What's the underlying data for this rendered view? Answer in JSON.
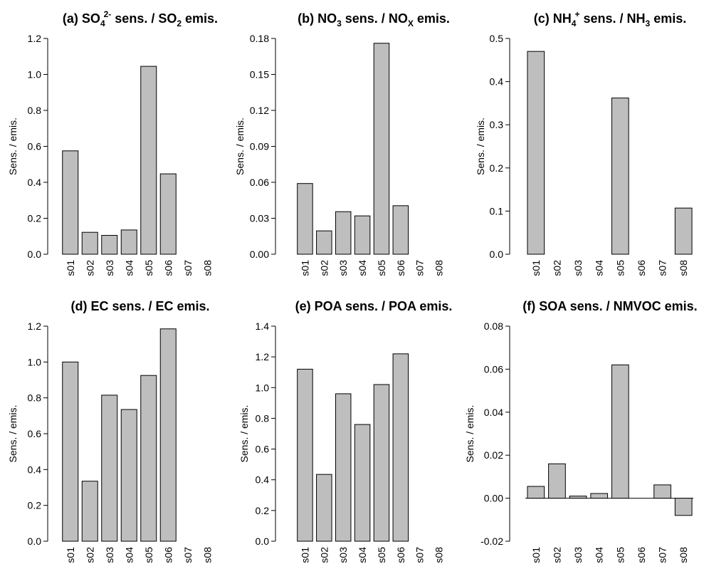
{
  "chart_data": [
    {
      "type": "bar",
      "title": {
        "pre": "(a) SO",
        "sub": "4",
        "sup": "2-",
        "post": " sens. / SO",
        "sub2": "2",
        "end": " emis."
      },
      "ylabel": "Sens. / emis.",
      "categories": [
        "s01",
        "s02",
        "s03",
        "s04",
        "s05",
        "s06",
        "s07",
        "s08"
      ],
      "values": [
        0.575,
        0.122,
        0.105,
        0.135,
        1.045,
        0.447,
        null,
        null
      ],
      "ylim": [
        0,
        1.2
      ],
      "ticks": [
        0.0,
        0.2,
        0.4,
        0.6,
        0.8,
        1.0,
        1.2
      ],
      "tick_labels": [
        "0.0",
        "0.2",
        "0.4",
        "0.6",
        "0.8",
        "1.0",
        "1.2"
      ],
      "bar_color": "#bebebe"
    },
    {
      "type": "bar",
      "title": {
        "pre": "(b) NO",
        "sub": "3",
        "sup": "",
        "post": " sens. / NO",
        "sub2": "X",
        "end": " emis."
      },
      "ylabel": "Sens. / emis.",
      "categories": [
        "s01",
        "s02",
        "s03",
        "s04",
        "s05",
        "s06",
        "s07",
        "s08"
      ],
      "values": [
        0.059,
        0.0195,
        0.0355,
        0.032,
        0.176,
        0.0405,
        null,
        null
      ],
      "ylim": [
        0,
        0.18
      ],
      "ticks": [
        0.0,
        0.03,
        0.06,
        0.09,
        0.12,
        0.15,
        0.18
      ],
      "tick_labels": [
        "0.00",
        "0.03",
        "0.06",
        "0.09",
        "0.12",
        "0.15",
        "0.18"
      ],
      "bar_color": "#bebebe"
    },
    {
      "type": "bar",
      "title": {
        "pre": "(c) NH",
        "sub": "4",
        "sup": "+",
        "post": " sens. / NH",
        "sub2": "3",
        "end": " emis."
      },
      "ylabel": "Sens. / emis.",
      "categories": [
        "s01",
        "s02",
        "s03",
        "s04",
        "s05",
        "s06",
        "s07",
        "s08"
      ],
      "values": [
        0.47,
        null,
        null,
        null,
        0.362,
        null,
        null,
        0.107
      ],
      "ylim": [
        0,
        0.5
      ],
      "ticks": [
        0.0,
        0.1,
        0.2,
        0.3,
        0.4,
        0.5
      ],
      "tick_labels": [
        "0.0",
        "0.1",
        "0.2",
        "0.3",
        "0.4",
        "0.5"
      ],
      "bar_color": "#bebebe"
    },
    {
      "type": "bar",
      "title": {
        "pre": "(d) EC sens. / EC emis.",
        "sub": "",
        "sup": "",
        "post": "",
        "sub2": "",
        "end": ""
      },
      "ylabel": "Sens. / emis.",
      "categories": [
        "s01",
        "s02",
        "s03",
        "s04",
        "s05",
        "s06",
        "s07",
        "s08"
      ],
      "values": [
        1.0,
        0.335,
        0.815,
        0.735,
        0.925,
        1.185,
        null,
        null
      ],
      "ylim": [
        0,
        1.2
      ],
      "ticks": [
        0.0,
        0.2,
        0.4,
        0.6,
        0.8,
        1.0,
        1.2
      ],
      "tick_labels": [
        "0.0",
        "0.2",
        "0.4",
        "0.6",
        "0.8",
        "1.0",
        "1.2"
      ],
      "bar_color": "#bebebe"
    },
    {
      "type": "bar",
      "title": {
        "pre": "(e) POA sens. / POA emis.",
        "sub": "",
        "sup": "",
        "post": "",
        "sub2": "",
        "end": ""
      },
      "ylabel": "Sens. / emis.",
      "categories": [
        "s01",
        "s02",
        "s03",
        "s04",
        "s05",
        "s06",
        "s07",
        "s08"
      ],
      "values": [
        1.12,
        0.435,
        0.96,
        0.76,
        1.02,
        1.22,
        null,
        null
      ],
      "ylim": [
        0,
        1.4
      ],
      "ticks": [
        0.0,
        0.2,
        0.4,
        0.6,
        0.8,
        1.0,
        1.2,
        1.4
      ],
      "tick_labels": [
        "0.0",
        "0.2",
        "0.4",
        "0.6",
        "0.8",
        "1.0",
        "1.2",
        "1.4"
      ],
      "bar_color": "#bebebe"
    },
    {
      "type": "bar",
      "title": {
        "pre": "(f) SOA sens. / NMVOC emis.",
        "sub": "",
        "sup": "",
        "post": "",
        "sub2": "",
        "end": ""
      },
      "ylabel": "Sens. / emis.",
      "categories": [
        "s01",
        "s02",
        "s03",
        "s04",
        "s05",
        "s06",
        "s07",
        "s08"
      ],
      "values": [
        0.0055,
        0.016,
        0.001,
        0.0022,
        0.062,
        0.0,
        0.0062,
        -0.008
      ],
      "ylim": [
        -0.02,
        0.08
      ],
      "ticks": [
        -0.02,
        0.0,
        0.02,
        0.04,
        0.06,
        0.08
      ],
      "tick_labels": [
        "-0.02",
        "0.00",
        "0.02",
        "0.04",
        "0.06",
        "0.08"
      ],
      "bar_color": "#bebebe",
      "zero_line": true
    }
  ]
}
